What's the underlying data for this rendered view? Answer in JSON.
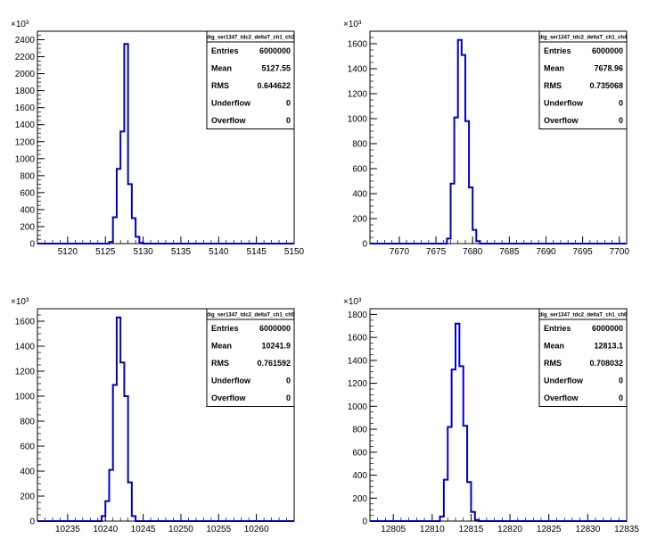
{
  "chart_data": [
    {
      "type": "histogram",
      "exponent_label": "×10³",
      "xlim": [
        5116,
        5150
      ],
      "ylim": [
        0,
        2500
      ],
      "xticks": [
        5120,
        5125,
        5130,
        5135,
        5140,
        5145,
        5150
      ],
      "yticks": [
        0,
        200,
        400,
        600,
        800,
        1000,
        1200,
        1400,
        1600,
        1800,
        2000,
        2200,
        2400
      ],
      "bin_width": 0.5,
      "bins": [
        [
          5125.5,
          5126,
          20
        ],
        [
          5126,
          5126.5,
          310
        ],
        [
          5126.5,
          5127,
          880
        ],
        [
          5127,
          5127.5,
          1320
        ],
        [
          5127.5,
          5128,
          2350
        ],
        [
          5128,
          5128.5,
          700
        ],
        [
          5128.5,
          5129,
          300
        ],
        [
          5129,
          5129.5,
          80
        ],
        [
          5129.5,
          5130,
          10
        ]
      ],
      "stats": {
        "title": "dig_ser1347_tdc2_deltaT_ch1_ch3",
        "rows": [
          [
            "Entries",
            "6000000"
          ],
          [
            "Mean",
            "5127.55"
          ],
          [
            "RMS",
            "0.644622"
          ],
          [
            "Underflow",
            "0"
          ],
          [
            "Overflow",
            "0"
          ]
        ]
      }
    },
    {
      "type": "histogram",
      "exponent_label": "×10³",
      "xlim": [
        7666,
        7701
      ],
      "ylim": [
        0,
        1700
      ],
      "xticks": [
        7670,
        7675,
        7680,
        7685,
        7690,
        7695,
        7700
      ],
      "yticks": [
        0,
        200,
        400,
        600,
        800,
        1000,
        1200,
        1400,
        1600
      ],
      "bin_width": 0.5,
      "bins": [
        [
          7676.5,
          7677,
          40
        ],
        [
          7677,
          7677.5,
          480
        ],
        [
          7677.5,
          7678,
          1010
        ],
        [
          7678,
          7678.5,
          1630
        ],
        [
          7678.5,
          7679,
          1510
        ],
        [
          7679,
          7679.5,
          980
        ],
        [
          7679.5,
          7680,
          450
        ],
        [
          7680,
          7680.5,
          110
        ],
        [
          7680.5,
          7681,
          20
        ]
      ],
      "stats": {
        "title": "dig_ser1347_tdc2_deltaT_ch1_ch4",
        "rows": [
          [
            "Entries",
            "6000000"
          ],
          [
            "Mean",
            "7678.96"
          ],
          [
            "RMS",
            "0.735068"
          ],
          [
            "Underflow",
            "0"
          ],
          [
            "Overflow",
            "0"
          ]
        ]
      }
    },
    {
      "type": "histogram",
      "exponent_label": "×10³",
      "xlim": [
        10231,
        10265
      ],
      "ylim": [
        0,
        1700
      ],
      "xticks": [
        10235,
        10240,
        10245,
        10250,
        10255,
        10260
      ],
      "yticks": [
        0,
        200,
        400,
        600,
        800,
        1000,
        1200,
        1400,
        1600
      ],
      "bin_width": 0.5,
      "bins": [
        [
          10239.5,
          10240,
          40
        ],
        [
          10240,
          10240.5,
          160
        ],
        [
          10240.5,
          10241,
          410
        ],
        [
          10241,
          10241.5,
          1090
        ],
        [
          10241.5,
          10242,
          1630
        ],
        [
          10242,
          10242.5,
          1270
        ],
        [
          10242.5,
          10243,
          1000
        ],
        [
          10243,
          10243.5,
          310
        ],
        [
          10243.5,
          10244,
          40
        ]
      ],
      "stats": {
        "title": "dig_ser1347_tdc2_deltaT_ch1_ch5",
        "rows": [
          [
            "Entries",
            "6000000"
          ],
          [
            "Mean",
            "10241.9"
          ],
          [
            "RMS",
            "0.761592"
          ],
          [
            "Underflow",
            "0"
          ],
          [
            "Overflow",
            "0"
          ]
        ]
      }
    },
    {
      "type": "histogram",
      "exponent_label": "×10³",
      "xlim": [
        12802,
        12835
      ],
      "ylim": [
        0,
        1850
      ],
      "xticks": [
        12805,
        12810,
        12815,
        12820,
        12825,
        12830,
        12835
      ],
      "yticks": [
        0,
        200,
        400,
        600,
        800,
        1000,
        1200,
        1400,
        1600,
        1800
      ],
      "bin_width": 0.5,
      "bins": [
        [
          12811,
          12811.5,
          40
        ],
        [
          12811.5,
          12812,
          360
        ],
        [
          12812,
          12812.5,
          820
        ],
        [
          12812.5,
          12813,
          1320
        ],
        [
          12813,
          12813.5,
          1720
        ],
        [
          12813.5,
          12814,
          1350
        ],
        [
          12814,
          12814.5,
          830
        ],
        [
          12814.5,
          12815,
          340
        ],
        [
          12815,
          12815.5,
          80
        ],
        [
          12815.5,
          12816,
          10
        ]
      ],
      "stats": {
        "title": "dig_ser1347_tdc2_deltaT_ch1_ch6",
        "rows": [
          [
            "Entries",
            "6000000"
          ],
          [
            "Mean",
            "12813.1"
          ],
          [
            "RMS",
            "0.708032"
          ],
          [
            "Underflow",
            "0"
          ],
          [
            "Overflow",
            "0"
          ]
        ]
      }
    }
  ],
  "colors": {
    "histogram_line": "#0000cc",
    "frame": "#000000",
    "background": "#ffffff"
  }
}
